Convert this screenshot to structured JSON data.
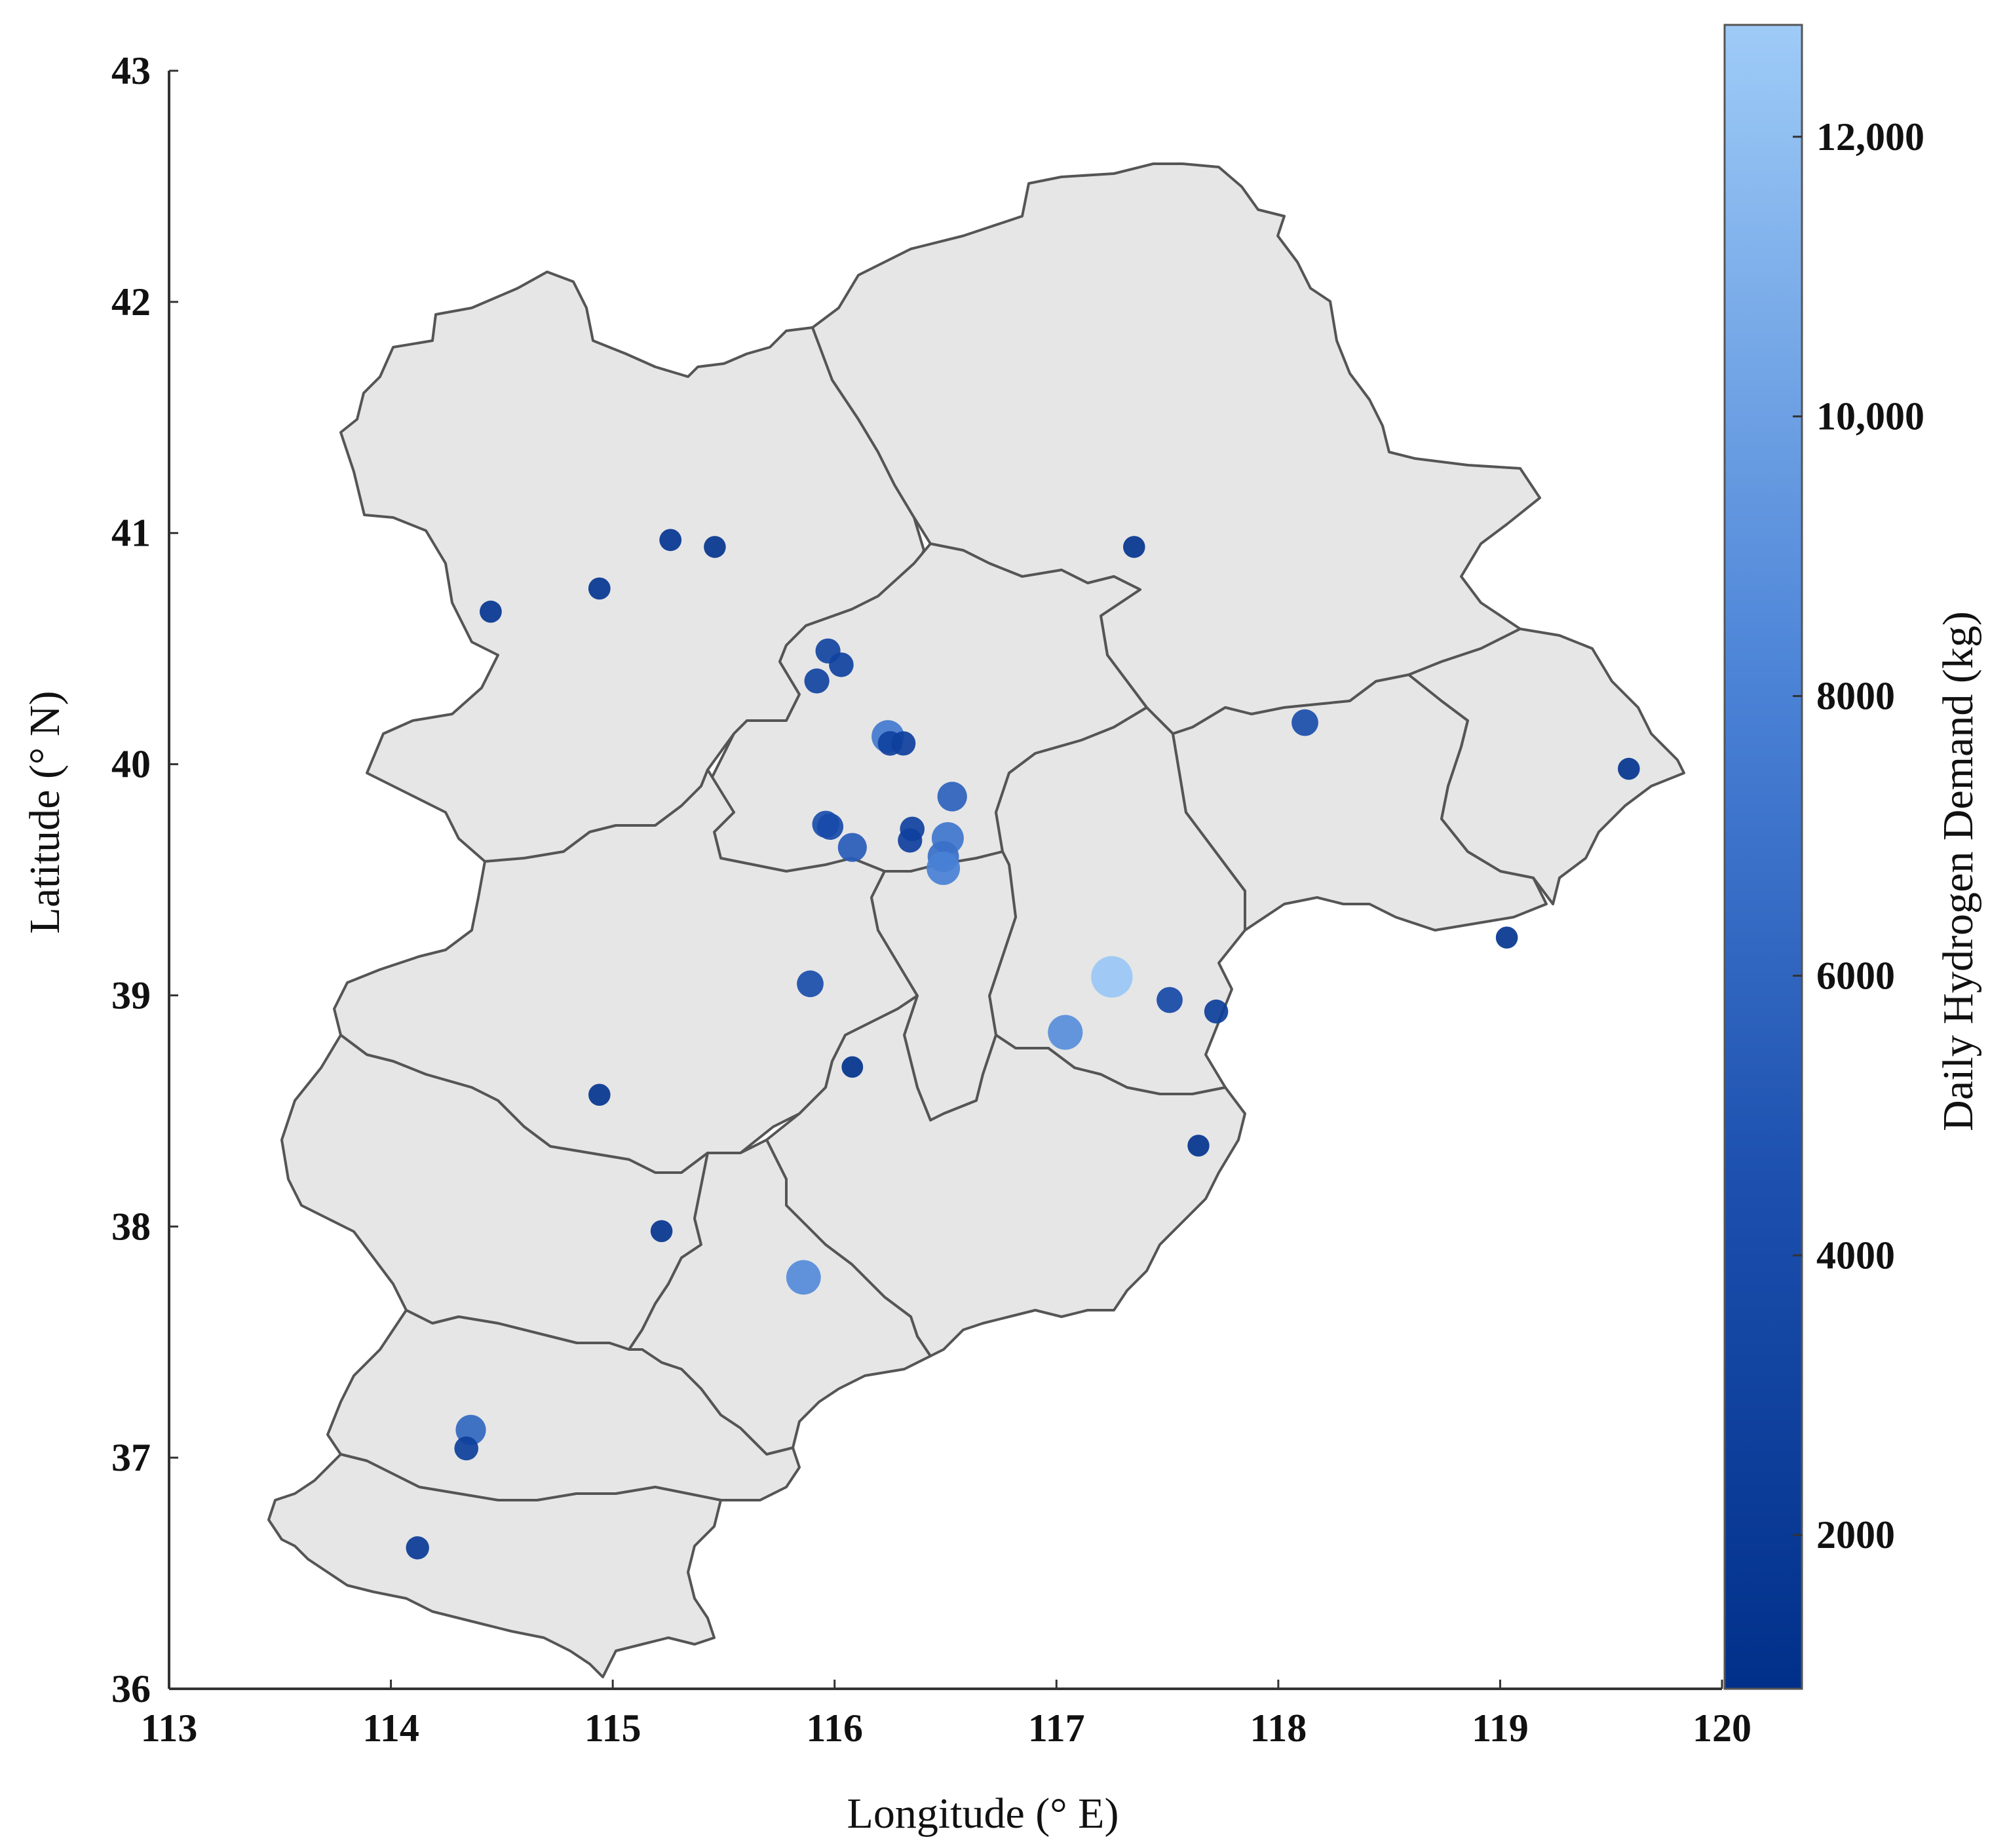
{
  "map": {
    "x_axis": {
      "title": "Longitude (° E)",
      "range": [
        113,
        120
      ],
      "ticks": [
        113,
        114,
        115,
        116,
        117,
        118,
        119,
        120
      ],
      "tick_labels": [
        "113",
        "114",
        "115",
        "116",
        "117",
        "118",
        "119",
        "120"
      ]
    },
    "y_axis": {
      "title": "Latitude (° N)",
      "range": [
        36,
        43
      ],
      "ticks": [
        36,
        37,
        38,
        39,
        40,
        41,
        42,
        43
      ],
      "tick_labels": [
        "36",
        "37",
        "38",
        "39",
        "40",
        "41",
        "42",
        "43"
      ]
    },
    "colorbar": {
      "title": "Daily Hydrogen Demand   (kg)",
      "range": [
        900,
        12800
      ],
      "ticks": [
        2000,
        4000,
        6000,
        8000,
        10000,
        12000
      ],
      "tick_labels": [
        "2000",
        "4000",
        "6000",
        "8000",
        "10,000",
        "12,000"
      ],
      "color_low": "#00308a",
      "color_high": "#9ecbf7"
    },
    "region_fill": "#e6e6e6",
    "region_stroke": "#555555",
    "stations": [
      {
        "lon": 114.45,
        "lat": 40.66,
        "demand": 1600
      },
      {
        "lon": 114.94,
        "lat": 40.76,
        "demand": 1600
      },
      {
        "lon": 115.26,
        "lat": 40.97,
        "demand": 1600
      },
      {
        "lon": 115.46,
        "lat": 40.94,
        "demand": 1500
      },
      {
        "lon": 117.35,
        "lat": 40.94,
        "demand": 1500
      },
      {
        "lon": 115.97,
        "lat": 40.49,
        "demand": 3200
      },
      {
        "lon": 116.03,
        "lat": 40.43,
        "demand": 3000
      },
      {
        "lon": 115.92,
        "lat": 40.36,
        "demand": 3200
      },
      {
        "lon": 116.24,
        "lat": 40.12,
        "demand": 7500
      },
      {
        "lon": 116.25,
        "lat": 40.09,
        "demand": 3000
      },
      {
        "lon": 116.31,
        "lat": 40.09,
        "demand": 2800
      },
      {
        "lon": 116.53,
        "lat": 39.86,
        "demand": 5800
      },
      {
        "lon": 115.96,
        "lat": 39.74,
        "demand": 4400
      },
      {
        "lon": 115.98,
        "lat": 39.73,
        "demand": 4000
      },
      {
        "lon": 116.35,
        "lat": 39.72,
        "demand": 3000
      },
      {
        "lon": 116.34,
        "lat": 39.67,
        "demand": 2800
      },
      {
        "lon": 116.51,
        "lat": 39.68,
        "demand": 7200
      },
      {
        "lon": 116.49,
        "lat": 39.6,
        "demand": 6800
      },
      {
        "lon": 116.49,
        "lat": 39.55,
        "demand": 8000
      },
      {
        "lon": 116.08,
        "lat": 39.64,
        "demand": 5400
      },
      {
        "lon": 118.12,
        "lat": 40.18,
        "demand": 4200
      },
      {
        "lon": 119.58,
        "lat": 39.98,
        "demand": 1500
      },
      {
        "lon": 119.03,
        "lat": 39.25,
        "demand": 1500
      },
      {
        "lon": 115.89,
        "lat": 39.05,
        "demand": 4200
      },
      {
        "lon": 117.25,
        "lat": 39.08,
        "demand": 12600
      },
      {
        "lon": 117.51,
        "lat": 38.98,
        "demand": 3800
      },
      {
        "lon": 117.72,
        "lat": 38.93,
        "demand": 2600
      },
      {
        "lon": 117.04,
        "lat": 38.84,
        "demand": 8800
      },
      {
        "lon": 116.08,
        "lat": 38.69,
        "demand": 1200
      },
      {
        "lon": 114.94,
        "lat": 38.57,
        "demand": 1500
      },
      {
        "lon": 117.64,
        "lat": 38.35,
        "demand": 1400
      },
      {
        "lon": 115.22,
        "lat": 37.98,
        "demand": 1500
      },
      {
        "lon": 115.86,
        "lat": 37.78,
        "demand": 8600
      },
      {
        "lon": 114.36,
        "lat": 37.12,
        "demand": 6200
      },
      {
        "lon": 114.34,
        "lat": 37.04,
        "demand": 2600
      },
      {
        "lon": 114.12,
        "lat": 36.61,
        "demand": 2200
      }
    ]
  }
}
